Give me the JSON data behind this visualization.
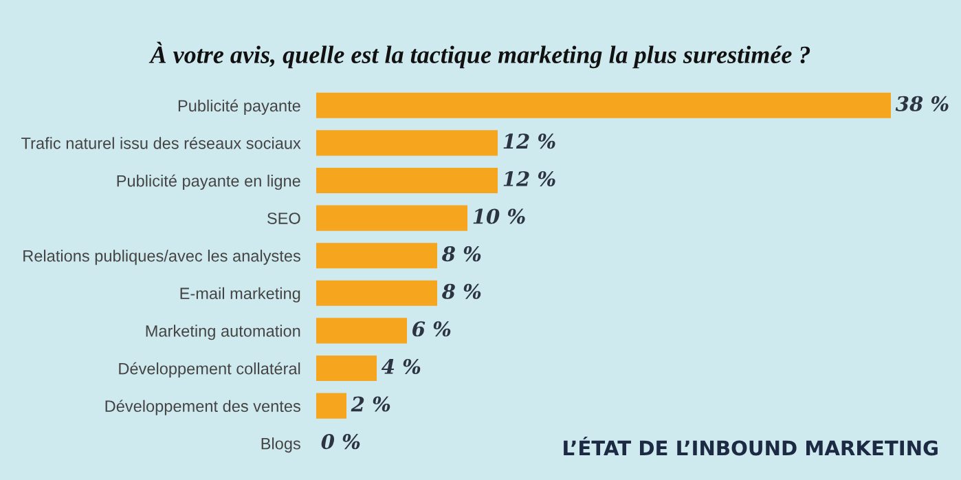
{
  "chart_data": {
    "type": "bar",
    "orientation": "horizontal",
    "title": "À votre avis, quelle est la tactique marketing la plus surestimée ?",
    "categories": [
      "Publicité payante",
      "Trafic naturel issu des réseaux sociaux",
      "Publicité payante en ligne",
      "SEO",
      "Relations publiques/avec les analystes",
      "E-mail marketing",
      "Marketing automation",
      "Développement collatéral",
      "Développement des ventes",
      "Blogs"
    ],
    "values": [
      38,
      12,
      12,
      10,
      8,
      8,
      6,
      4,
      2,
      0
    ],
    "value_labels": [
      "38 %",
      "12 %",
      "12 %",
      "10 %",
      "8 %",
      "8 %",
      "6 %",
      "4 %",
      "2 %",
      "0 %"
    ],
    "color": "#f6a61e",
    "annotations": [
      "L’ÉTAT DE L’INBOUND MARKETING"
    ],
    "grid": false,
    "legend": false
  }
}
